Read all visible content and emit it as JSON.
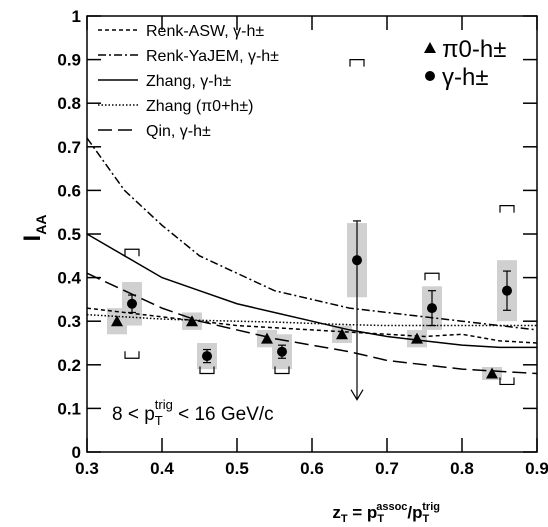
{
  "chart_data": {
    "type": "errorbar_with_curves",
    "x_label": [
      "z",
      "T",
      " = p",
      "T",
      "assoc",
      "/p",
      "T",
      "trig"
    ],
    "y_label": [
      "I",
      "AA"
    ],
    "annotation": [
      "8 < p",
      "T",
      "trig",
      " < 16 GeV/c"
    ],
    "xlim": [
      0.3,
      0.9
    ],
    "xticks": [
      0.3,
      0.4,
      0.5,
      0.6,
      0.7,
      0.8,
      0.9
    ],
    "ylim": [
      0,
      1
    ],
    "yticks": [
      0,
      0.1,
      0.2,
      0.3,
      0.4,
      0.5,
      0.6,
      0.7,
      0.8,
      0.9,
      1
    ],
    "curve_x": [
      0.3,
      0.35,
      0.4,
      0.45,
      0.5,
      0.55,
      0.6,
      0.65,
      0.7,
      0.75,
      0.8,
      0.85,
      0.9
    ],
    "curves": [
      {
        "name": "Renk-ASW, γ-h±",
        "style": "dashed",
        "color": "#000000",
        "values": [
          0.33,
          0.32,
          0.31,
          0.3,
          0.29,
          0.285,
          0.28,
          0.275,
          0.27,
          0.265,
          0.27,
          0.255,
          0.25
        ]
      },
      {
        "name": "Renk-YaJEM, γ-h±",
        "style": "dashdot",
        "color": "#000000",
        "values": [
          0.72,
          0.6,
          0.52,
          0.45,
          0.41,
          0.37,
          0.35,
          0.33,
          0.32,
          0.31,
          0.3,
          0.29,
          0.28
        ]
      },
      {
        "name": "Zhang, γ-h±",
        "style": "solid",
        "color": "#000000",
        "values": [
          0.5,
          0.45,
          0.4,
          0.37,
          0.34,
          0.32,
          0.3,
          0.28,
          0.265,
          0.255,
          0.245,
          0.24,
          0.24
        ]
      },
      {
        "name": "Zhang (π0+h±)",
        "style": "dotted",
        "color": "#000000",
        "values": [
          0.315,
          0.31,
          0.305,
          0.302,
          0.3,
          0.298,
          0.295,
          0.292,
          0.29,
          0.29,
          0.29,
          0.29,
          0.29
        ]
      },
      {
        "name": "Qin, γ-h±",
        "style": "longdash",
        "color": "#000000",
        "values": [
          0.41,
          0.37,
          0.33,
          0.3,
          0.28,
          0.26,
          0.245,
          0.23,
          0.21,
          0.2,
          0.19,
          0.185,
          0.18
        ]
      }
    ],
    "series": [
      {
        "name": "π0-h±",
        "marker": "triangle",
        "color": "#000000",
        "sys_color": "#d0d0d0",
        "x": [
          0.34,
          0.44,
          0.54,
          0.64,
          0.74,
          0.84
        ],
        "values": [
          0.3,
          0.3,
          0.26,
          0.27,
          0.26,
          0.18
        ],
        "sys": [
          0.03,
          0.02,
          0.02,
          0.02,
          0.02,
          0.015
        ]
      },
      {
        "name": "γ-h±",
        "marker": "circle",
        "color": "#000000",
        "sys_color": "#d0d0d0",
        "x": [
          0.36,
          0.46,
          0.56,
          0.66,
          0.76,
          0.86
        ],
        "values": [
          0.34,
          0.22,
          0.23,
          0.44,
          0.33,
          0.37
        ],
        "err_high": [
          0.02,
          0.015,
          0.015,
          0.09,
          0.04,
          0.045
        ],
        "err_low": [
          0.02,
          0.015,
          0.015,
          0.32,
          0.04,
          0.045
        ],
        "limit_arrow": [
          false,
          false,
          false,
          true,
          false,
          false
        ],
        "sys": [
          0.05,
          0.03,
          0.04,
          0.085,
          0.05,
          0.07
        ],
        "bracket_low": [
          0.215,
          0.18,
          0.18,
          null,
          null,
          0.155
        ],
        "bracket_high": [
          0.465,
          null,
          null,
          0.9,
          0.41,
          0.565
        ]
      }
    ]
  }
}
